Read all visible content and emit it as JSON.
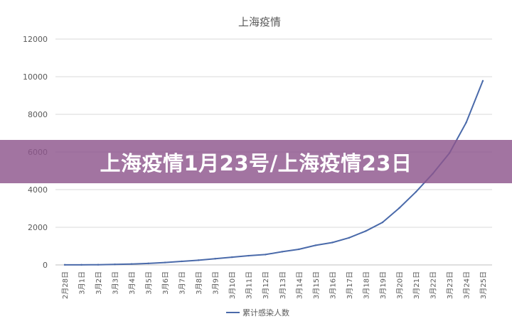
{
  "banner": {
    "title": "上海疫情1月23号/上海疫情23日"
  },
  "chart_data": {
    "type": "line",
    "title": "上海疫情",
    "xlabel": "",
    "ylabel": "",
    "ylim": [
      0,
      12000
    ],
    "yticks": [
      0,
      2000,
      4000,
      6000,
      8000,
      10000,
      12000
    ],
    "grid": true,
    "legend_position": "bottom",
    "categories": [
      "2月28日",
      "3月1日",
      "3月2日",
      "3月3日",
      "3月4日",
      "3月5日",
      "3月6日",
      "3月7日",
      "3月8日",
      "3月9日",
      "3月10日",
      "3月11日",
      "3月12日",
      "3月13日",
      "3月14日",
      "3月15日",
      "3月16日",
      "3月17日",
      "3月18日",
      "3月19日",
      "3月20日",
      "3月21日",
      "3月22日",
      "3月23日",
      "3月24日",
      "3月25日"
    ],
    "series": [
      {
        "name": "累计感染人数",
        "color": "#4a6aaa",
        "values": [
          5,
          5,
          10,
          30,
          50,
          80,
          130,
          190,
          250,
          330,
          410,
          490,
          550,
          700,
          830,
          1040,
          1190,
          1440,
          1800,
          2260,
          3020,
          3880,
          4840,
          5940,
          7560,
          9780
        ]
      }
    ]
  }
}
